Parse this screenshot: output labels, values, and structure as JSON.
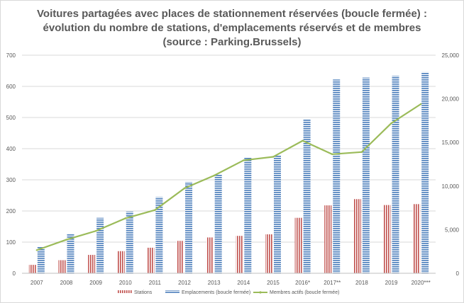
{
  "chart_data": {
    "type": "bar",
    "title": [
      "Voitures partagées avec places de stationnement réservées (boucle fermée) :",
      "évolution du nombre de stations, d'emplacements réservés et de membres",
      "(source : Parking.Brussels)"
    ],
    "categories": [
      "2007",
      "2008",
      "2009",
      "2010",
      "2011",
      "2012",
      "2013",
      "2014",
      "2015",
      "2016*",
      "2017**",
      "2018",
      "2019",
      "2020***"
    ],
    "series": [
      {
        "name": "Stations",
        "kind": "bar",
        "axis": "left",
        "color": "#c0504d",
        "values": [
          27,
          42,
          59,
          71,
          82,
          104,
          115,
          120,
          125,
          178,
          218,
          238,
          219,
          222
        ]
      },
      {
        "name": "Emplacements (boucle fermée)",
        "kind": "bar",
        "axis": "left",
        "color": "#4f81bd",
        "values": [
          86,
          125,
          178,
          198,
          245,
          293,
          318,
          372,
          378,
          495,
          622,
          628,
          634,
          646
        ]
      },
      {
        "name": "Membres actifs (boucle fermée)",
        "kind": "line",
        "axis": "right",
        "color": "#9bbb59",
        "values": [
          2650,
          3850,
          4850,
          6300,
          7250,
          9750,
          11200,
          12950,
          13350,
          15200,
          13650,
          13900,
          17200,
          19400
        ]
      }
    ],
    "y_left": {
      "min": 0,
      "max": 700,
      "ticks": [
        "0",
        "100",
        "200",
        "300",
        "400",
        "500",
        "600",
        "700"
      ]
    },
    "y_right": {
      "min": 0,
      "max": 25000,
      "ticks": [
        "0",
        "5,000",
        "10,000",
        "15,000",
        "20,000",
        "25,000"
      ]
    },
    "grid": true,
    "legend_position": "bottom"
  }
}
